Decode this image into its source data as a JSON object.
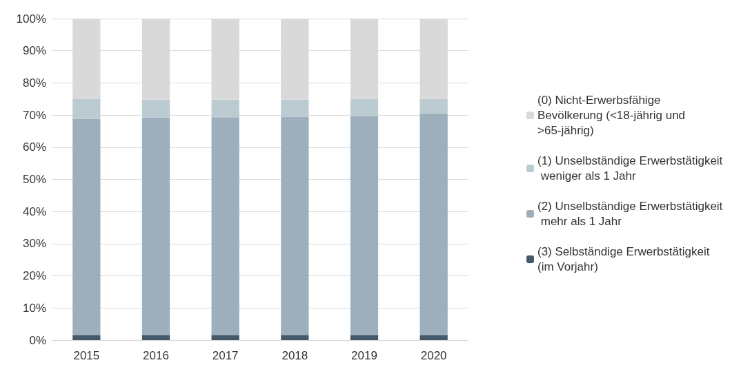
{
  "chart_data": {
    "type": "bar",
    "stacked": true,
    "categories": [
      "2015",
      "2016",
      "2017",
      "2018",
      "2019",
      "2020"
    ],
    "series": [
      {
        "name": "(3) Selbständige Erwerbstätigkeit (im Vorjahr)",
        "color": "#44596a",
        "values": [
          1.5,
          1.5,
          1.5,
          1.5,
          1.5,
          1.5
        ]
      },
      {
        "name": "(2) Unselbständige Erwerbstätigkeit mehr als 1 Jahr",
        "color": "#9dafbc",
        "values": [
          67.3,
          67.7,
          67.8,
          68.0,
          68.2,
          69.0
        ]
      },
      {
        "name": "(1) Unselbständige Erwerbstätigkeit weniger als 1 Jahr",
        "color": "#bccbd2",
        "values": [
          6.2,
          5.6,
          5.5,
          5.3,
          5.3,
          4.5
        ]
      },
      {
        "name": "(0) Nicht-Erwerbsfähige Bevölkerung (<18-jährig und >65-jährig)",
        "color": "#d9d9d9",
        "values": [
          25.0,
          25.2,
          25.2,
          25.2,
          25.0,
          25.0
        ]
      }
    ],
    "ylim": [
      0,
      100
    ],
    "yticks": [
      {
        "value": 0,
        "label": "0%"
      },
      {
        "value": 10,
        "label": "10%"
      },
      {
        "value": 20,
        "label": "20%"
      },
      {
        "value": 30,
        "label": "30%"
      },
      {
        "value": 40,
        "label": "40%"
      },
      {
        "value": 50,
        "label": "50%"
      },
      {
        "value": 60,
        "label": "60%"
      },
      {
        "value": 70,
        "label": "70%"
      },
      {
        "value": 80,
        "label": "80%"
      },
      {
        "value": 90,
        "label": "90%"
      },
      {
        "value": 100,
        "label": "100%"
      }
    ],
    "grid": "y",
    "legend": "right"
  }
}
